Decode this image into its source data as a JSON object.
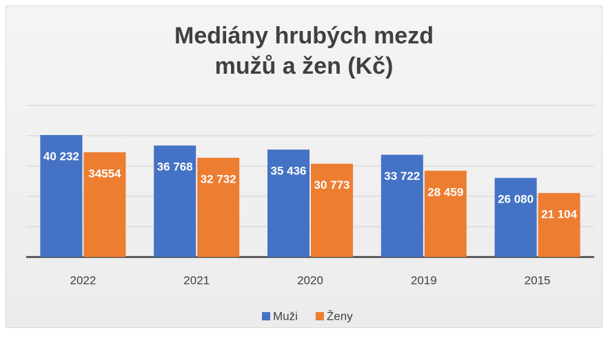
{
  "chart_data": {
    "type": "bar",
    "title": "Mediány hrubých mezd mužů a žen (Kč)",
    "categories": [
      "2022",
      "2021",
      "2020",
      "2019",
      "2015"
    ],
    "series": [
      {
        "name": "Muži",
        "color": "#4472c4",
        "values": [
          40232,
          36768,
          35436,
          33722,
          26080
        ],
        "value_labels": [
          "40 232",
          "36 768",
          "35 436",
          "33 722",
          "26 080"
        ]
      },
      {
        "name": "Ženy",
        "color": "#ed7d31",
        "values": [
          34554,
          32732,
          30773,
          28459,
          21104
        ],
        "value_labels": [
          "34554",
          "32 732",
          "30 773",
          "28 459",
          "21 104"
        ]
      }
    ],
    "ylim": [
      0,
      50000
    ],
    "yticks": [
      0,
      10000,
      20000,
      30000,
      40000,
      50000
    ],
    "grid": true,
    "legend": "bottom"
  }
}
